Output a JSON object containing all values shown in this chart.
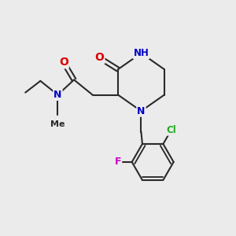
{
  "background_color": "#ebebeb",
  "bond_color": "#2a2a2a",
  "bond_width": 1.5,
  "atom_colors": {
    "C": "#2a2a2a",
    "N": "#0000cc",
    "O": "#dd0000",
    "Cl": "#22aa22",
    "F": "#cc00cc",
    "H": "#4488aa"
  },
  "font_size": 9
}
